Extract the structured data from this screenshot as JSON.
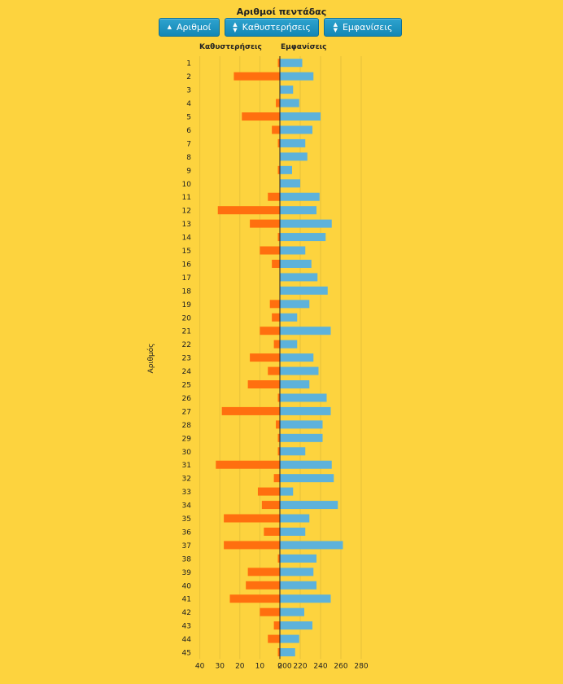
{
  "title": "Αριθμοί πεντάδας",
  "buttons": {
    "numbers": {
      "label": "Αριθμοί",
      "icon": "sort-up-icon"
    },
    "delays": {
      "label": "Καθυστερήσεις",
      "icon": "sort-icon"
    },
    "appearances": {
      "label": "Εμφανίσεις",
      "icon": "sort-icon"
    }
  },
  "colors": {
    "background": "#FDD33E",
    "delays": "#FF6F0F",
    "appearances": "#5DB2DB",
    "button": "#1C95C4",
    "axis": "#222222",
    "grid": "#E8C23A"
  },
  "chart_data": {
    "type": "bar",
    "layout": "diverging-horizontal",
    "ylabel": "Αριθμός",
    "categories": [
      "1",
      "2",
      "3",
      "4",
      "5",
      "6",
      "7",
      "8",
      "9",
      "10",
      "11",
      "12",
      "13",
      "14",
      "15",
      "16",
      "17",
      "18",
      "19",
      "20",
      "21",
      "22",
      "23",
      "24",
      "25",
      "26",
      "27",
      "28",
      "29",
      "30",
      "31",
      "32",
      "33",
      "34",
      "35",
      "36",
      "37",
      "38",
      "39",
      "40",
      "41",
      "42",
      "43",
      "44",
      "45"
    ],
    "series": [
      {
        "name": "Καθυστερήσεις",
        "side": "left",
        "xlim": [
          0,
          40
        ],
        "ticks": [
          40,
          30,
          20,
          10,
          0
        ],
        "values": [
          1,
          23,
          0,
          2,
          19,
          4,
          1,
          0,
          1,
          0,
          6,
          31,
          15,
          1,
          10,
          4,
          0,
          0,
          5,
          4,
          10,
          3,
          15,
          6,
          16,
          1,
          29,
          2,
          1,
          1,
          32,
          3,
          11,
          9,
          28,
          8,
          28,
          1,
          16,
          17,
          25,
          10,
          3,
          6,
          1
        ]
      },
      {
        "name": "Εμφανίσεις",
        "side": "right",
        "xlim": [
          200,
          290
        ],
        "ticks": [
          200,
          220,
          240,
          260,
          280
        ],
        "values": [
          222,
          233,
          213,
          219,
          240,
          232,
          225,
          227,
          212,
          220,
          239,
          236,
          251,
          245,
          225,
          231,
          237,
          247,
          229,
          217,
          250,
          217,
          233,
          238,
          229,
          246,
          250,
          242,
          242,
          225,
          251,
          253,
          213,
          257,
          229,
          225,
          262,
          236,
          233,
          236,
          250,
          224,
          232,
          219,
          215
        ]
      }
    ]
  }
}
